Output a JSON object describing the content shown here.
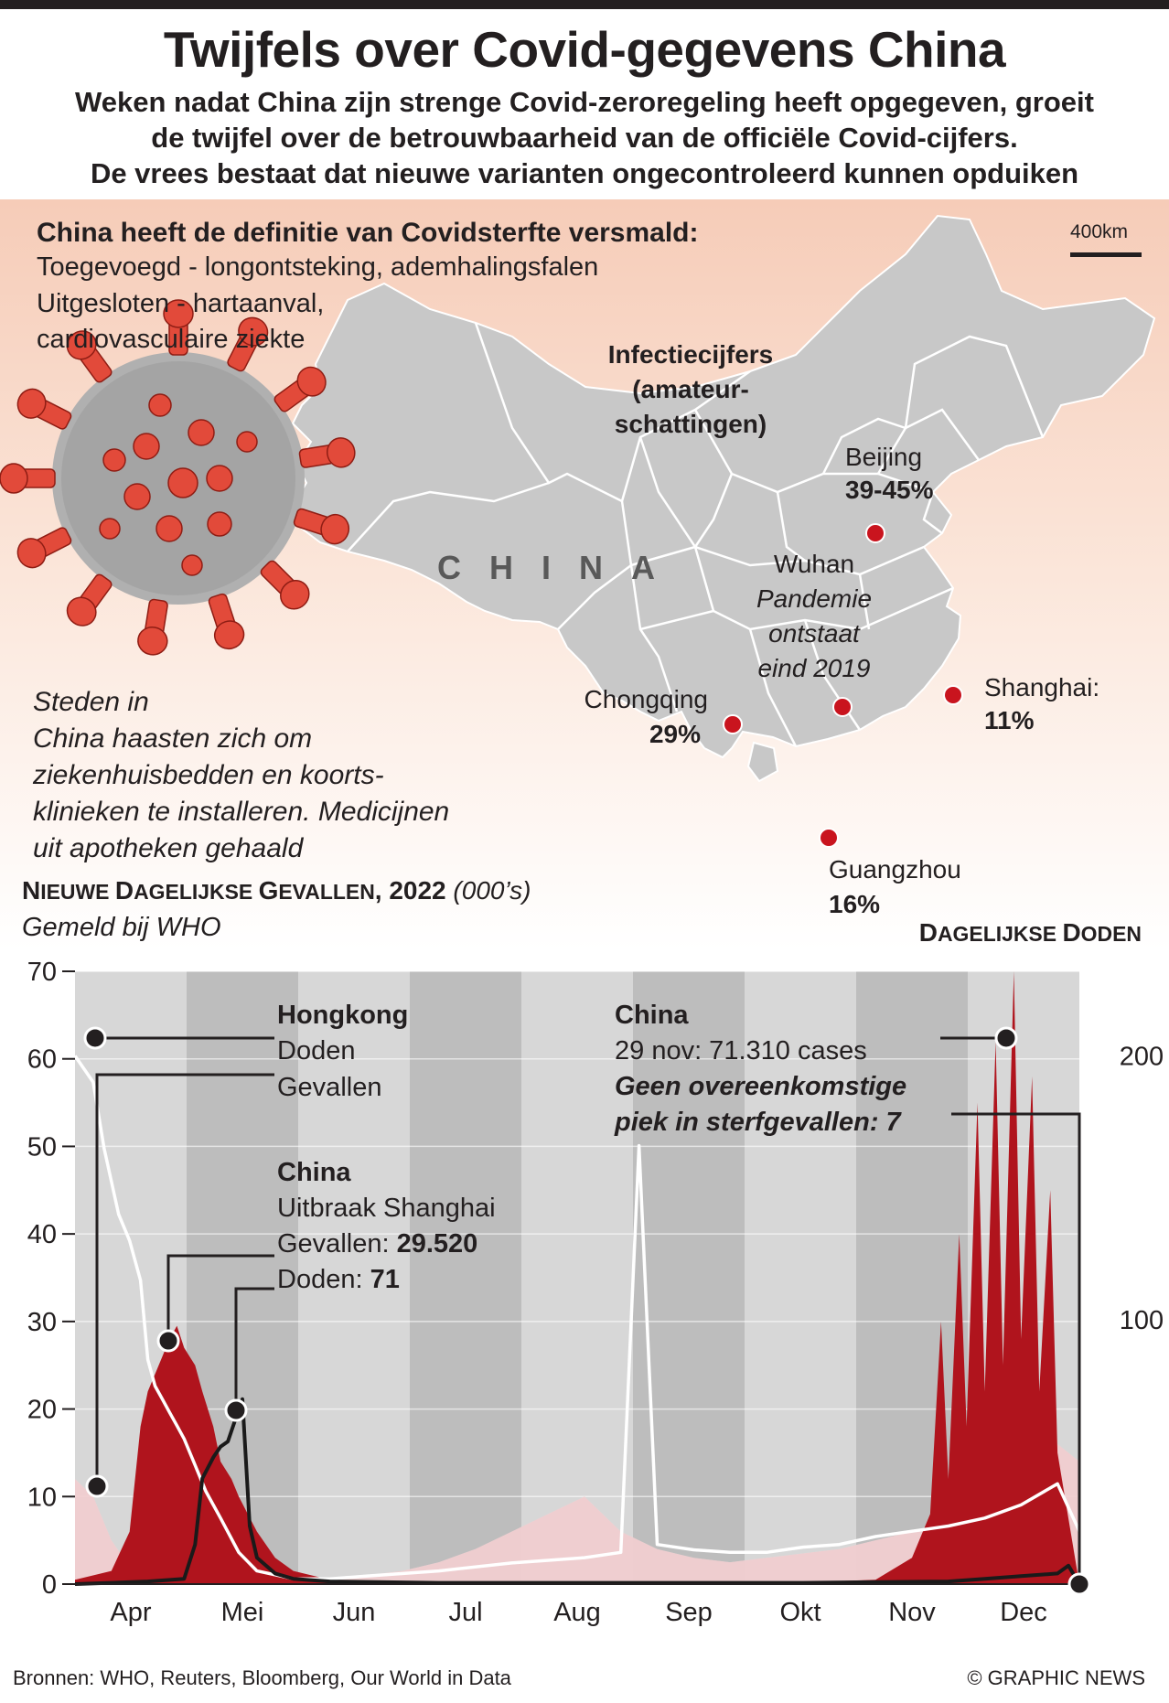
{
  "title": "Twijfels over Covid-gegevens China",
  "subtitle": [
    "Weken nadat China zijn strenge Covid-zeroregeling heeft opgegeven, groeit",
    "de twijfel over de betrouwbaarheid van de officiële Covid-cijfers.",
    "De vrees bestaat dat nieuwe varianten ongecontroleerd kunnen opduiken"
  ],
  "definition": {
    "heading": "China heeft de definitie van Covidsterfte versmald:",
    "lines": [
      "Toegevoegd - longontsteking, ademhalingsfalen",
      "Uitgesloten - hartaanval,",
      "cardiovasculaire ziekte"
    ]
  },
  "map": {
    "scale_label": "400km",
    "country_label": "CHINA",
    "infection_heading": [
      "Infectiecijfers",
      "(amateur-",
      "schattingen)"
    ],
    "cities": [
      {
        "name": "Beijing",
        "value": "39-45%"
      },
      {
        "name": "Wuhan",
        "note": [
          "Pandemie",
          "ontstaat",
          "eind 2019"
        ]
      },
      {
        "name": "Shanghai:",
        "value": "11%"
      },
      {
        "name": "Chongqing",
        "value": "29%"
      },
      {
        "name": "Guangzhou",
        "value": "16%"
      }
    ],
    "colors": {
      "land": "#c8c8c8",
      "borders": "#ffffff",
      "city_dot": "#c9141e"
    }
  },
  "note": [
    "Steden in",
    "China haasten zich om",
    "ziekenhuisbedden en koorts-",
    "klinieken te installeren. Medicijnen",
    "uit apotheken gehaald"
  ],
  "chart_header": {
    "title_caps": [
      [
        "N",
        "IEUWE "
      ],
      [
        "D",
        "AGELIJKSE "
      ],
      [
        "G",
        "EVALLEN"
      ]
    ],
    "title_year": ", 2022",
    "unit": "(000’s)",
    "subtitle": "Gemeld bij WHO",
    "right_title_caps": [
      [
        "D",
        "AGELIJKSE "
      ],
      [
        "D",
        "ODEN"
      ]
    ]
  },
  "annotations": {
    "hongkong": {
      "heading": "Hongkong",
      "deaths_label": "Doden",
      "cases_label": "Gevallen"
    },
    "china_shanghai": {
      "heading": "China",
      "event": "Uitbraak Shanghai",
      "cases_label": "Gevallen: ",
      "cases_value": "29.520",
      "deaths_label": "Doden: ",
      "deaths_value": "71"
    },
    "china_nov": {
      "heading": "China",
      "text": "29 nov: 71.310 cases",
      "emphasis": [
        "Geen overeenkomstige",
        "piek in sterfgevallen: 7"
      ]
    }
  },
  "source": "Bronnen: WHO, Reuters, Bloomberg, Our World in Data",
  "credit": "© GRAPHIC NEWS",
  "chart_data": {
    "type": "area",
    "xlabel": "",
    "ylabel": "",
    "x_ticks": [
      "Apr",
      "Mei",
      "Jun",
      "Jul",
      "Aug",
      "Sep",
      "Okt",
      "Nov",
      "Dec"
    ],
    "y_left": {
      "ticks": [
        0,
        10,
        20,
        30,
        40,
        50,
        60,
        70
      ],
      "lim": [
        0,
        70
      ]
    },
    "y_right": {
      "ticks": [
        100,
        200
      ],
      "lim": [
        0,
        232
      ]
    },
    "x_range_days": [
      0,
      276
    ],
    "colors": {
      "china_cases": "#b0141d",
      "hongkong_cases": "#f0f0f0",
      "hongkong_deaths": "#ffffff",
      "china_deaths": "#1a1a1a",
      "pink": "#f2b7b9"
    },
    "series": [
      {
        "name": "Hongkong Gevallen",
        "axis": "left",
        "render": "area",
        "x": [
          0,
          5,
          10,
          15,
          20,
          30,
          40,
          50,
          60,
          70,
          80,
          90,
          100,
          110,
          120,
          130,
          140,
          150,
          160,
          170,
          180,
          190,
          200,
          210,
          220,
          230,
          240,
          250,
          260,
          270,
          276
        ],
        "y": [
          12,
          10,
          5,
          2,
          0.8,
          0.4,
          0.3,
          0.3,
          0.4,
          0.6,
          1.0,
          1.5,
          2.5,
          4,
          6,
          8,
          10,
          6,
          4,
          3,
          2.5,
          3,
          3.5,
          4,
          5,
          6,
          7,
          9,
          12,
          16,
          14
        ]
      },
      {
        "name": "China Gevallen",
        "axis": "left",
        "render": "area",
        "x": [
          0,
          10,
          15,
          18,
          20,
          24,
          26,
          28,
          30,
          33,
          35,
          38,
          40,
          43,
          45,
          50,
          55,
          60,
          70,
          100,
          150,
          200,
          220,
          230,
          235,
          238,
          240,
          243,
          245,
          248,
          250,
          253,
          255,
          258,
          260,
          263,
          265,
          268,
          270,
          276
        ],
        "y": [
          0.5,
          1.5,
          6,
          18,
          22,
          26,
          28,
          29.5,
          27,
          25,
          22,
          18,
          14,
          12,
          10,
          6,
          3,
          1.5,
          0.5,
          0.1,
          0.1,
          0.2,
          0.5,
          3,
          8,
          30,
          12,
          40,
          18,
          55,
          22,
          62,
          25,
          70,
          28,
          58,
          22,
          45,
          15,
          0
        ]
      },
      {
        "name": "Hongkong Doden",
        "axis": "right",
        "render": "line",
        "x": [
          0,
          5,
          8,
          12,
          15,
          18,
          20,
          22,
          24,
          26,
          28,
          30,
          33,
          36,
          40,
          45,
          50,
          60,
          70,
          80,
          100,
          120,
          140,
          150,
          155,
          160,
          170,
          180,
          190,
          200,
          210,
          220,
          230,
          240,
          250,
          260,
          270,
          276
        ],
        "y": [
          200,
          190,
          165,
          140,
          130,
          115,
          85,
          75,
          70,
          65,
          60,
          55,
          45,
          35,
          25,
          12,
          5,
          2,
          2,
          3,
          5,
          8,
          10,
          12,
          166,
          15,
          13,
          12,
          12,
          14,
          15,
          18,
          20,
          22,
          25,
          30,
          38,
          20
        ]
      },
      {
        "name": "China Doden",
        "axis": "right",
        "render": "line",
        "x": [
          0,
          20,
          30,
          33,
          35,
          38,
          40,
          42,
          44,
          46,
          48,
          50,
          55,
          60,
          70,
          100,
          200,
          240,
          250,
          260,
          270,
          273,
          276
        ],
        "y": [
          0,
          1,
          2,
          15,
          40,
          48,
          52,
          54,
          62,
          70,
          22,
          10,
          4,
          2,
          1,
          0.5,
          0.5,
          1,
          2,
          3,
          4,
          7,
          0
        ]
      }
    ]
  }
}
